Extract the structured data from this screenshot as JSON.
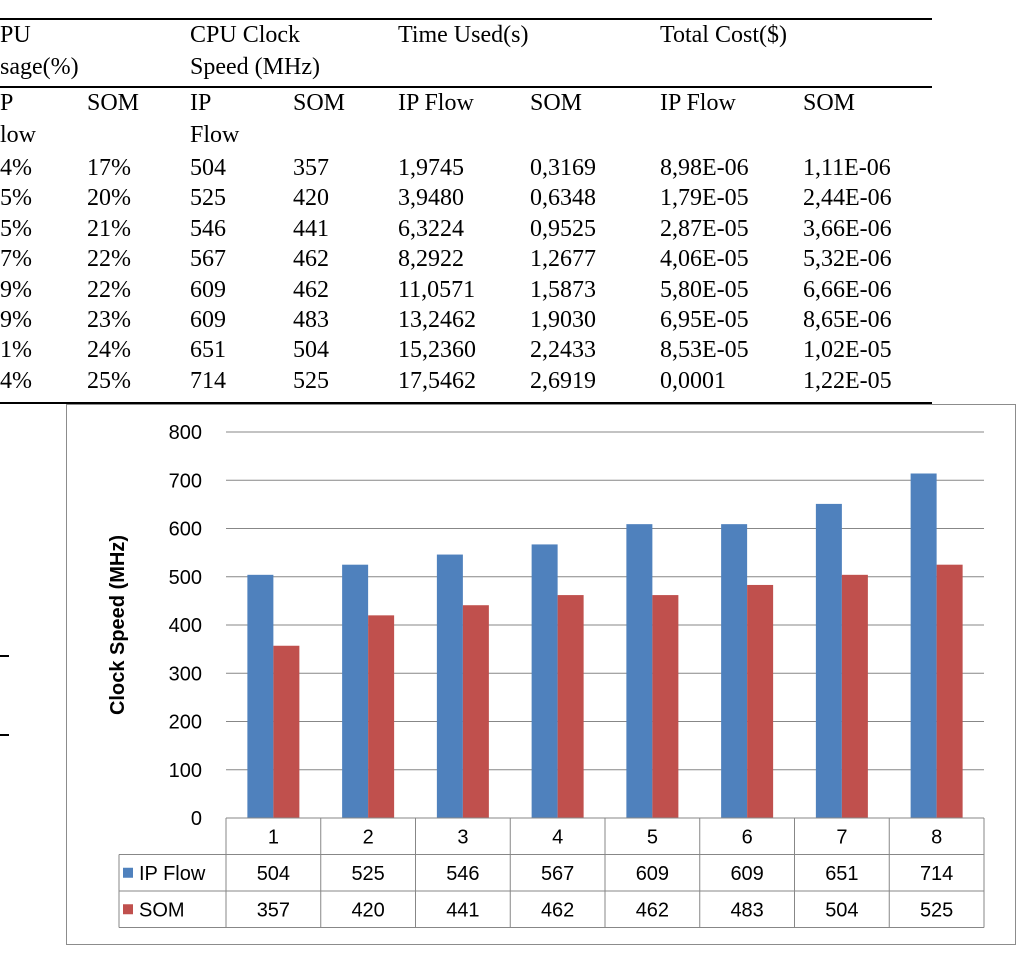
{
  "table": {
    "group_headers": [
      {
        "line1": "PU",
        "line2": "sage(%)"
      },
      {
        "line1": "CPU Clock",
        "line2": "Speed (MHz)"
      },
      {
        "line1": "Time Used(s)",
        "line2": ""
      },
      {
        "line1": "Total Cost($)",
        "line2": ""
      }
    ],
    "sub_headers": [
      {
        "line1": "P",
        "line2": "low"
      },
      {
        "line1": "SOM",
        "line2": ""
      },
      {
        "line1": "IP",
        "line2": "Flow"
      },
      {
        "line1": "SOM",
        "line2": ""
      },
      {
        "line1": "IP Flow",
        "line2": ""
      },
      {
        "line1": "SOM",
        "line2": ""
      },
      {
        "line1": "IP Flow",
        "line2": ""
      },
      {
        "line1": "SOM",
        "line2": ""
      }
    ],
    "rows": [
      [
        "4%",
        "17%",
        "504",
        "357",
        "1,9745",
        "0,3169",
        "8,98E-06",
        "1,11E-06"
      ],
      [
        "5%",
        "20%",
        "525",
        "420",
        "3,9480",
        "0,6348",
        "1,79E-05",
        "2,44E-06"
      ],
      [
        "5%",
        "21%",
        "546",
        "441",
        "6,3224",
        "0,9525",
        "2,87E-05",
        "3,66E-06"
      ],
      [
        "7%",
        "22%",
        "567",
        "462",
        "8,2922",
        "1,2677",
        "4,06E-05",
        "5,32E-06"
      ],
      [
        "9%",
        "22%",
        "609",
        "462",
        "11,0571",
        "1,5873",
        "5,80E-05",
        "6,66E-06"
      ],
      [
        "9%",
        "23%",
        "609",
        "483",
        "13,2462",
        "1,9030",
        "6,95E-05",
        "8,65E-06"
      ],
      [
        "1%",
        "24%",
        "651",
        "504",
        "15,2360",
        "2,2433",
        "8,53E-05",
        "1,02E-05"
      ],
      [
        "4%",
        "25%",
        "714",
        "525",
        "17,5462",
        "2,6919",
        "0,0001",
        "1,22E-05"
      ]
    ]
  },
  "chart_data": {
    "type": "bar",
    "ylabel": "Clock Speed (MHz)",
    "ylim": [
      0,
      800
    ],
    "yticks": [
      "0",
      "100",
      "200",
      "300",
      "400",
      "500",
      "600",
      "700",
      "800"
    ],
    "categories": [
      "1",
      "2",
      "3",
      "4",
      "5",
      "6",
      "7",
      "8"
    ],
    "grid": true,
    "legend": "data-table",
    "series": [
      {
        "name": "IP Flow",
        "color": "#4F81BD",
        "values": [
          504,
          525,
          546,
          567,
          609,
          609,
          651,
          714
        ]
      },
      {
        "name": "SOM",
        "color": "#C0504D",
        "values": [
          357,
          420,
          441,
          462,
          462,
          483,
          504,
          525
        ]
      }
    ]
  }
}
